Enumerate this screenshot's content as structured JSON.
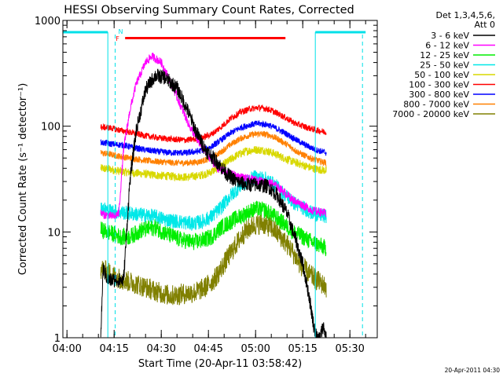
{
  "chart_data": {
    "type": "line",
    "title": "HESSI Observing Summary Count Rates, Corrected",
    "xlabel": "Start Time (20-Apr-11 03:58:42)",
    "ylabel": "Corrected Count Rate (s⁻¹ detector⁻¹)",
    "xlim": [
      "03:58:42",
      "05:38:42"
    ],
    "ylim": [
      1,
      1000
    ],
    "y_scale": "log",
    "grid": false,
    "x_ticks": [
      "04:00",
      "04:15",
      "04:30",
      "04:45",
      "05:00",
      "05:15",
      "05:30"
    ],
    "y_ticks": [
      "1",
      "10",
      "100",
      "1000"
    ],
    "legend": {
      "placement": "outside-right",
      "header_lines": [
        "Det 1,3,4,5,6,",
        "Att 0"
      ]
    },
    "footer_date": "20-Apr-2011 04:30",
    "data_coverage": [
      "04:10:45",
      "05:22:30"
    ],
    "night_intervals": [
      [
        "03:58:42",
        "04:13:00"
      ],
      [
        "05:19:00",
        "05:35:00"
      ]
    ],
    "saa_markers": [
      "04:15:20",
      "05:34:00"
    ],
    "n_label": "N",
    "flare_label": "F",
    "flare_interval": [
      "04:18:30",
      "05:09:30"
    ],
    "colors": {
      "axes": "#000000",
      "night": "#00e0e8",
      "flare": "#ff0000"
    },
    "series": [
      {
        "name": "3 - 6 keV",
        "color": "#000000",
        "noise": 0.07,
        "points": [
          [
            "04:10:45",
            1.0
          ],
          [
            "04:11:30",
            4.5
          ],
          [
            "04:13:00",
            3.5
          ],
          [
            "04:18:00",
            3.5
          ],
          [
            "04:20:00",
            30
          ],
          [
            "04:22:00",
            90
          ],
          [
            "04:25:00",
            220
          ],
          [
            "04:28:00",
            300
          ],
          [
            "04:31:00",
            290
          ],
          [
            "04:35:00",
            230
          ],
          [
            "04:38:00",
            150
          ],
          [
            "04:41:00",
            90
          ],
          [
            "04:44:00",
            60
          ],
          [
            "04:48:00",
            45
          ],
          [
            "04:51:00",
            35
          ],
          [
            "04:54:00",
            30
          ],
          [
            "04:57:00",
            28
          ],
          [
            "05:00:00",
            28
          ],
          [
            "05:04:00",
            27
          ],
          [
            "05:07:00",
            22
          ],
          [
            "05:10:00",
            15
          ],
          [
            "05:13:00",
            8
          ],
          [
            "05:15:00",
            5
          ],
          [
            "05:17:00",
            2.5
          ],
          [
            "05:18:30",
            1.3
          ],
          [
            "05:19:30",
            1.0
          ],
          [
            "05:20:30",
            1.0
          ],
          [
            "05:21:30",
            1.3
          ],
          [
            "05:22:30",
            1.0
          ]
        ]
      },
      {
        "name": "6 - 12 keV",
        "color": "#ff00ff",
        "noise": 0.04,
        "points": [
          [
            "04:10:45",
            15.0
          ],
          [
            "04:12:00",
            14.5
          ],
          [
            "04:15:00",
            14
          ],
          [
            "04:16:30",
            15
          ],
          [
            "04:18:00",
            60
          ],
          [
            "04:20:00",
            140
          ],
          [
            "04:22:00",
            250
          ],
          [
            "04:25:00",
            400
          ],
          [
            "04:27:00",
            460
          ],
          [
            "04:30:00",
            400
          ],
          [
            "04:33:00",
            260
          ],
          [
            "04:36:00",
            160
          ],
          [
            "04:39:00",
            100
          ],
          [
            "04:42:00",
            70
          ],
          [
            "04:45:00",
            52
          ],
          [
            "04:48:00",
            40
          ],
          [
            "04:51:00",
            36
          ],
          [
            "04:54:00",
            34
          ],
          [
            "04:57:00",
            32
          ],
          [
            "05:00:00",
            31
          ],
          [
            "05:03:00",
            30
          ],
          [
            "05:06:00",
            28
          ],
          [
            "05:09:00",
            24
          ],
          [
            "05:12:00",
            20
          ],
          [
            "05:15:00",
            18
          ],
          [
            "05:18:00",
            16
          ],
          [
            "05:22:30",
            15
          ]
        ]
      },
      {
        "name": "12 - 25 keV",
        "color": "#00ee00",
        "noise": 0.08,
        "points": [
          [
            "04:10:45",
            10.5
          ],
          [
            "04:13:00",
            10
          ],
          [
            "04:15:00",
            9.5
          ],
          [
            "04:17:00",
            9
          ],
          [
            "04:20:00",
            9
          ],
          [
            "04:24:00",
            10.5
          ],
          [
            "04:28:00",
            11
          ],
          [
            "04:32:00",
            9.5
          ],
          [
            "04:36:00",
            8.5
          ],
          [
            "04:40:00",
            8
          ],
          [
            "04:43:00",
            8.3
          ],
          [
            "04:46:00",
            9
          ],
          [
            "04:49:00",
            11
          ],
          [
            "04:53:00",
            13
          ],
          [
            "04:57:00",
            15
          ],
          [
            "05:00:00",
            16.5
          ],
          [
            "05:03:00",
            16
          ],
          [
            "05:06:00",
            14
          ],
          [
            "05:09:00",
            12
          ],
          [
            "05:12:00",
            10
          ],
          [
            "05:15:00",
            9
          ],
          [
            "05:18:00",
            8
          ],
          [
            "05:22:30",
            7
          ]
        ]
      },
      {
        "name": "25 - 50 keV",
        "color": "#00e8e8",
        "noise": 0.07,
        "points": [
          [
            "04:10:45",
            17
          ],
          [
            "04:13:00",
            16
          ],
          [
            "04:16:00",
            15.5
          ],
          [
            "04:20:00",
            15
          ],
          [
            "04:24:00",
            14.5
          ],
          [
            "04:28:00",
            14
          ],
          [
            "04:32:00",
            13
          ],
          [
            "04:36:00",
            12.5
          ],
          [
            "04:40:00",
            12
          ],
          [
            "04:43:00",
            12.5
          ],
          [
            "04:46:00",
            14
          ],
          [
            "04:49:00",
            17
          ],
          [
            "04:52:00",
            22
          ],
          [
            "04:55:00",
            27
          ],
          [
            "04:58:00",
            31
          ],
          [
            "05:00:00",
            33
          ],
          [
            "05:03:00",
            32
          ],
          [
            "05:06:00",
            28
          ],
          [
            "05:09:00",
            23
          ],
          [
            "05:12:00",
            19
          ],
          [
            "05:15:00",
            17
          ],
          [
            "05:18:00",
            15
          ],
          [
            "05:22:30",
            14
          ]
        ]
      },
      {
        "name": "50 - 100 keV",
        "color": "#d8d800",
        "noise": 0.04,
        "points": [
          [
            "04:10:45",
            40
          ],
          [
            "04:14:00",
            39
          ],
          [
            "04:18:00",
            37
          ],
          [
            "04:22:00",
            36
          ],
          [
            "04:26:00",
            35
          ],
          [
            "04:30:00",
            34
          ],
          [
            "04:34:00",
            33.5
          ],
          [
            "04:38:00",
            33
          ],
          [
            "04:42:00",
            34
          ],
          [
            "04:45:00",
            36
          ],
          [
            "04:48:00",
            40
          ],
          [
            "04:51:00",
            46
          ],
          [
            "04:54:00",
            53
          ],
          [
            "04:57:00",
            58
          ],
          [
            "05:00:00",
            60
          ],
          [
            "05:03:00",
            59
          ],
          [
            "05:06:00",
            55
          ],
          [
            "05:09:00",
            50
          ],
          [
            "05:12:00",
            46
          ],
          [
            "05:15:00",
            43
          ],
          [
            "05:18:00",
            40
          ],
          [
            "05:22:30",
            38
          ]
        ]
      },
      {
        "name": "100 - 300 keV",
        "color": "#ff0000",
        "noise": 0.03,
        "points": [
          [
            "04:10:45",
            98
          ],
          [
            "04:14:00",
            96
          ],
          [
            "04:18:00",
            90
          ],
          [
            "04:22:00",
            85
          ],
          [
            "04:26:00",
            80
          ],
          [
            "04:30:00",
            77
          ],
          [
            "04:34:00",
            75
          ],
          [
            "04:38:00",
            74
          ],
          [
            "04:42:00",
            76
          ],
          [
            "04:46:00",
            84
          ],
          [
            "04:49:00",
            98
          ],
          [
            "04:52:00",
            118
          ],
          [
            "04:55:00",
            135
          ],
          [
            "04:58:00",
            145
          ],
          [
            "05:01:00",
            150
          ],
          [
            "05:04:00",
            145
          ],
          [
            "05:07:00",
            132
          ],
          [
            "05:10:00",
            118
          ],
          [
            "05:13:00",
            105
          ],
          [
            "05:16:00",
            98
          ],
          [
            "05:19:00",
            92
          ],
          [
            "05:22:30",
            88
          ]
        ]
      },
      {
        "name": "300 - 800 keV",
        "color": "#0000ff",
        "noise": 0.03,
        "points": [
          [
            "04:10:45",
            70
          ],
          [
            "04:14:00",
            68
          ],
          [
            "04:18:00",
            66
          ],
          [
            "04:22:00",
            62
          ],
          [
            "04:26:00",
            59
          ],
          [
            "04:30:00",
            57
          ],
          [
            "04:34:00",
            56
          ],
          [
            "04:38:00",
            56
          ],
          [
            "04:42:00",
            58
          ],
          [
            "04:46:00",
            64
          ],
          [
            "04:49:00",
            74
          ],
          [
            "04:52:00",
            86
          ],
          [
            "04:55:00",
            96
          ],
          [
            "04:58:00",
            103
          ],
          [
            "05:01:00",
            106
          ],
          [
            "05:04:00",
            103
          ],
          [
            "05:07:00",
            94
          ],
          [
            "05:10:00",
            84
          ],
          [
            "05:13:00",
            74
          ],
          [
            "05:16:00",
            66
          ],
          [
            "05:19:00",
            60
          ],
          [
            "05:22:30",
            56
          ]
        ]
      },
      {
        "name": "800 - 7000 keV",
        "color": "#ff8000",
        "noise": 0.03,
        "points": [
          [
            "04:10:45",
            56
          ],
          [
            "04:14:00",
            54
          ],
          [
            "04:18:00",
            51
          ],
          [
            "04:22:00",
            49
          ],
          [
            "04:26:00",
            47
          ],
          [
            "04:30:00",
            46
          ],
          [
            "04:34:00",
            45
          ],
          [
            "04:38:00",
            45
          ],
          [
            "04:42:00",
            46
          ],
          [
            "04:46:00",
            50
          ],
          [
            "04:49:00",
            57
          ],
          [
            "04:52:00",
            67
          ],
          [
            "04:55:00",
            76
          ],
          [
            "04:58:00",
            82
          ],
          [
            "05:01:00",
            85
          ],
          [
            "05:04:00",
            83
          ],
          [
            "05:07:00",
            76
          ],
          [
            "05:10:00",
            67
          ],
          [
            "05:13:00",
            58
          ],
          [
            "05:16:00",
            52
          ],
          [
            "05:19:00",
            48
          ],
          [
            "05:22:30",
            45
          ]
        ]
      },
      {
        "name": "7000 - 20000 keV",
        "color": "#808000",
        "noise": 0.1,
        "points": [
          [
            "04:10:45",
            4.5
          ],
          [
            "04:14:00",
            4.0
          ],
          [
            "04:17:00",
            3.6
          ],
          [
            "04:21:00",
            3.3
          ],
          [
            "04:25:00",
            3.0
          ],
          [
            "04:29:00",
            2.7
          ],
          [
            "04:33:00",
            2.5
          ],
          [
            "04:37:00",
            2.6
          ],
          [
            "04:41:00",
            2.7
          ],
          [
            "04:44:00",
            3.0
          ],
          [
            "04:47:00",
            3.6
          ],
          [
            "04:50:00",
            5.0
          ],
          [
            "04:53:00",
            7.0
          ],
          [
            "04:56:00",
            9.5
          ],
          [
            "04:59:00",
            11.5
          ],
          [
            "05:02:00",
            12
          ],
          [
            "05:05:00",
            11
          ],
          [
            "05:08:00",
            9
          ],
          [
            "05:11:00",
            7
          ],
          [
            "05:14:00",
            5
          ],
          [
            "05:17:00",
            4
          ],
          [
            "05:22:30",
            3
          ]
        ]
      }
    ]
  }
}
